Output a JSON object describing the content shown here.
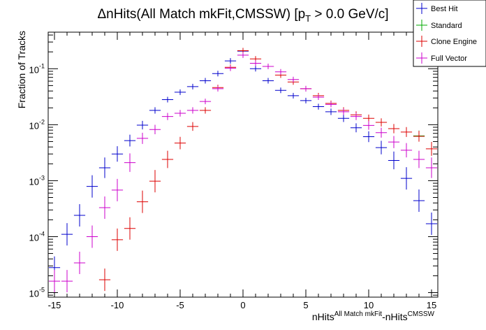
{
  "chart_data": {
    "type": "scatter",
    "title_main": "ΔnHits(All Match mkFit,CMSSW) [p",
    "title_sub": "T",
    "title_tail": " > 0.0 GeV/c]",
    "ylabel": "Fraction of Tracks",
    "xlabel_main": "nHits",
    "xlabel_sup1": "All Match mkFit",
    "xlabel_mid": "-nHits",
    "xlabel_sup2": "CMSSW",
    "xlim": [
      -15.5,
      15.5
    ],
    "ylim_log": [
      -5.08,
      -4.0
    ],
    "ylim": [
      8.3e-06,
      0.45
    ],
    "log_y": true,
    "x_ticks": [
      -15,
      -10,
      -5,
      0,
      5,
      10,
      15
    ],
    "x_tick_labels": [
      "-15",
      "-10",
      "-5",
      "0",
      "5",
      "10",
      "15"
    ],
    "y_ticks": [
      1e-05,
      0.0001,
      0.001,
      0.01,
      0.1
    ],
    "y_tick_labels": [
      {
        "base": "10",
        "exp": "-5"
      },
      {
        "base": "10",
        "exp": "-4"
      },
      {
        "base": "10",
        "exp": "-3"
      },
      {
        "base": "10",
        "exp": "-2"
      },
      {
        "base": "10",
        "exp": "-1"
      }
    ],
    "legend_position": "top-right",
    "series": [
      {
        "name": "Best Hit",
        "color": "#0000cc",
        "x": [
          -15,
          -14,
          -13,
          -12,
          -11,
          -10,
          -9,
          -8,
          -7,
          -6,
          -5,
          -4,
          -3,
          -2,
          -1,
          0,
          1,
          2,
          3,
          4,
          5,
          6,
          7,
          8,
          9,
          10,
          11,
          12,
          13,
          14,
          15
        ],
        "y": [
          2.8e-05,
          0.00011,
          0.00024,
          0.00079,
          0.0017,
          0.003,
          0.0052,
          0.0098,
          0.018,
          0.028,
          0.038,
          0.048,
          0.061,
          0.082,
          0.138,
          0.206,
          0.1,
          0.061,
          0.041,
          0.033,
          0.027,
          0.021,
          0.017,
          0.013,
          0.0088,
          0.0061,
          0.0039,
          0.0023,
          0.0011,
          0.00044,
          0.00017
        ]
      },
      {
        "name": "Standard",
        "color": "#00aa00",
        "x": [
          14
        ],
        "y": [
          0.0063
        ]
      },
      {
        "name": "Clone Engine",
        "color": "#dd0000",
        "x": [
          -11,
          -10,
          -9,
          -8,
          -7,
          -6,
          -5,
          -4,
          -3,
          -2,
          -1,
          0,
          1,
          2,
          3,
          4,
          5,
          6,
          7,
          8,
          9,
          10,
          11,
          12,
          13,
          14,
          15
        ],
        "y": [
          1.7e-05,
          8.8e-05,
          0.00014,
          0.00042,
          0.00098,
          0.0024,
          0.0047,
          0.0093,
          0.018,
          0.046,
          0.106,
          0.21,
          0.15,
          0.11,
          0.077,
          0.058,
          0.044,
          0.033,
          0.024,
          0.018,
          0.015,
          0.013,
          0.011,
          0.0085,
          0.0074,
          0.0062,
          0.0037
        ]
      },
      {
        "name": "Full Vector",
        "color": "#cc00cc",
        "x": [
          -15,
          -14,
          -13,
          -12,
          -11,
          -10,
          -9,
          -8,
          -7,
          -6,
          -5,
          -4,
          -3,
          -2,
          -1,
          0,
          1,
          2,
          3,
          4,
          5,
          6,
          7,
          8,
          9,
          10,
          11,
          12,
          13,
          14,
          15
        ],
        "y": [
          1.6e-05,
          1.6e-05,
          3.4e-05,
          0.0001,
          0.00033,
          0.00068,
          0.0021,
          0.0057,
          0.0082,
          0.014,
          0.016,
          0.018,
          0.026,
          0.044,
          0.102,
          0.175,
          0.125,
          0.11,
          0.088,
          0.064,
          0.044,
          0.031,
          0.023,
          0.017,
          0.014,
          0.0097,
          0.0072,
          0.0049,
          0.0035,
          0.0024,
          0.0017
        ]
      }
    ]
  }
}
